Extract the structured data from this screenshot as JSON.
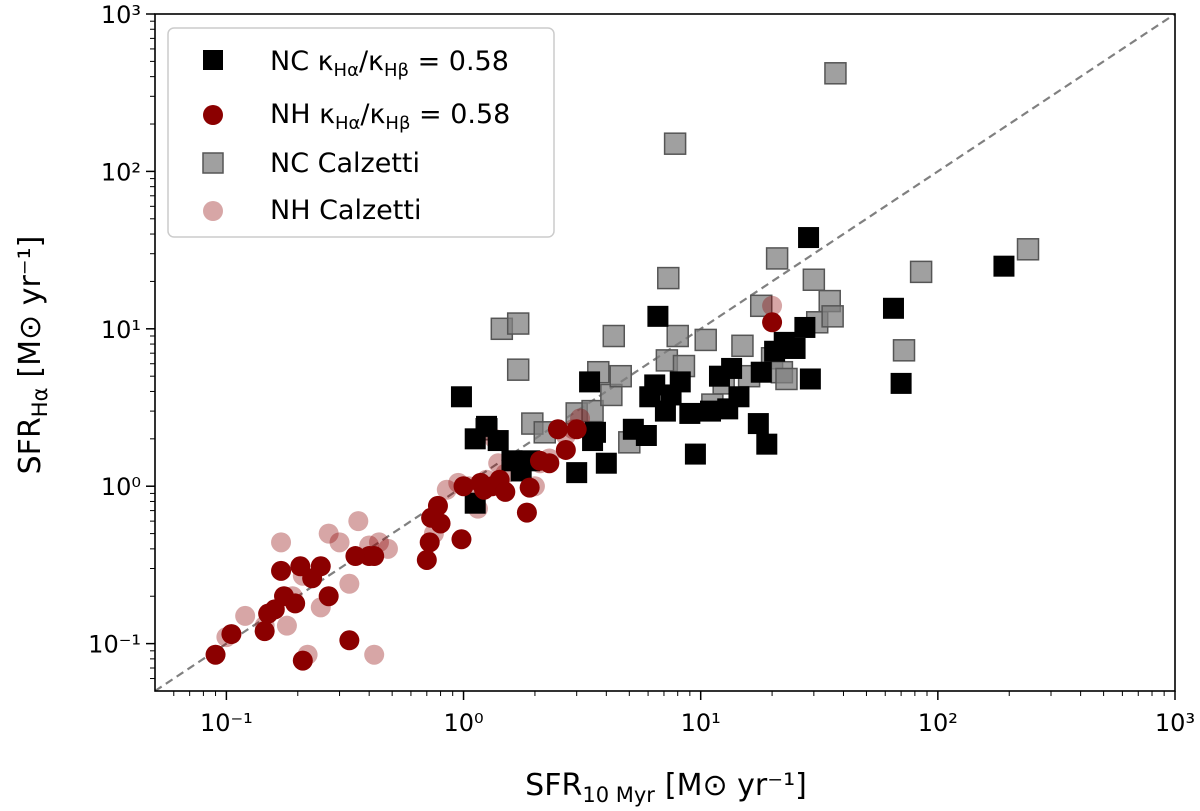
{
  "chart_data": {
    "type": "scatter",
    "xscale": "log",
    "yscale": "log",
    "xlim": [
      0.05,
      1000
    ],
    "ylim": [
      0.05,
      1000
    ],
    "xlabel": {
      "base": "SFR",
      "sub": "10 Myr",
      "units": "[M⊙ yr⁻¹]"
    },
    "ylabel": {
      "base": "SFR",
      "sub": "Hα",
      "units": "[M⊙ yr⁻¹]"
    },
    "x_ticks": [
      {
        "value": 0.1,
        "label": "10⁻¹"
      },
      {
        "value": 1,
        "label": "10⁰"
      },
      {
        "value": 10,
        "label": "10¹"
      },
      {
        "value": 100,
        "label": "10²"
      },
      {
        "value": 1000,
        "label": "10³"
      }
    ],
    "y_ticks": [
      {
        "value": 0.1,
        "label": "10⁻¹"
      },
      {
        "value": 1,
        "label": "10⁰"
      },
      {
        "value": 10,
        "label": "10¹"
      },
      {
        "value": 100,
        "label": "10²"
      },
      {
        "value": 1000,
        "label": "10³"
      }
    ],
    "reference_line": {
      "style": "dashed",
      "color": "#808080",
      "relation": "y = x"
    },
    "legend": {
      "placement": "upper-left"
    },
    "series": [
      {
        "name": "NC κHα/κHβ = 0.58",
        "label_display": "NC κ_Hα/κ_Hβ = 0.58",
        "marker": "square",
        "color": "#000000",
        "opacity": 1,
        "points": [
          [
            0.98,
            3.7
          ],
          [
            1.12,
            2.0
          ],
          [
            1.12,
            0.78
          ],
          [
            1.25,
            2.4
          ],
          [
            1.4,
            1.95
          ],
          [
            1.6,
            1.45
          ],
          [
            1.75,
            1.25
          ],
          [
            1.9,
            1.45
          ],
          [
            3.0,
            1.22
          ],
          [
            3.4,
            4.6
          ],
          [
            3.5,
            1.95
          ],
          [
            3.6,
            2.2
          ],
          [
            4.0,
            1.4
          ],
          [
            5.2,
            2.3
          ],
          [
            5.9,
            2.1
          ],
          [
            6.1,
            3.7
          ],
          [
            6.4,
            4.4
          ],
          [
            6.6,
            12.0
          ],
          [
            7.1,
            3.0
          ],
          [
            7.5,
            3.8
          ],
          [
            8.2,
            4.6
          ],
          [
            9.0,
            2.9
          ],
          [
            9.5,
            1.6
          ],
          [
            11.0,
            3.0
          ],
          [
            12.0,
            5.0
          ],
          [
            13.0,
            3.1
          ],
          [
            13.5,
            5.6
          ],
          [
            14.5,
            3.7
          ],
          [
            17.5,
            2.5
          ],
          [
            18.0,
            5.3
          ],
          [
            19.0,
            1.85
          ],
          [
            20.5,
            7.2
          ],
          [
            22.5,
            8.2
          ],
          [
            25.0,
            7.5
          ],
          [
            27.5,
            10.2
          ],
          [
            28.5,
            38.0
          ],
          [
            29.0,
            4.8
          ],
          [
            65.0,
            13.5
          ],
          [
            70.0,
            4.5
          ],
          [
            190.0,
            25.0
          ]
        ]
      },
      {
        "name": "NH κHα/κHβ = 0.58",
        "label_display": "NH κ_Hα/κ_Hβ = 0.58",
        "marker": "circle",
        "color": "#8b0000",
        "opacity": 1,
        "points": [
          [
            0.09,
            0.085
          ],
          [
            0.105,
            0.115
          ],
          [
            0.145,
            0.12
          ],
          [
            0.15,
            0.155
          ],
          [
            0.16,
            0.165
          ],
          [
            0.17,
            0.29
          ],
          [
            0.175,
            0.2
          ],
          [
            0.195,
            0.18
          ],
          [
            0.205,
            0.31
          ],
          [
            0.21,
            0.078
          ],
          [
            0.23,
            0.26
          ],
          [
            0.25,
            0.31
          ],
          [
            0.27,
            0.2
          ],
          [
            0.33,
            0.105
          ],
          [
            0.35,
            0.36
          ],
          [
            0.4,
            0.36
          ],
          [
            0.42,
            0.36
          ],
          [
            0.7,
            0.34
          ],
          [
            0.72,
            0.44
          ],
          [
            0.73,
            0.63
          ],
          [
            0.78,
            0.75
          ],
          [
            0.8,
            0.58
          ],
          [
            0.98,
            0.46
          ],
          [
            1.0,
            1.0
          ],
          [
            1.18,
            1.05
          ],
          [
            1.22,
            0.95
          ],
          [
            1.32,
            1.0
          ],
          [
            1.42,
            1.1
          ],
          [
            1.5,
            0.92
          ],
          [
            1.85,
            0.68
          ],
          [
            1.9,
            0.98
          ],
          [
            2.1,
            1.45
          ],
          [
            2.3,
            1.4
          ],
          [
            2.5,
            2.3
          ],
          [
            2.7,
            1.7
          ],
          [
            3.0,
            2.3
          ],
          [
            20.0,
            11.0
          ]
        ]
      },
      {
        "name": "NC Calzetti",
        "marker": "square",
        "color": "#808080",
        "opacity": 0.75,
        "points": [
          [
            1.25,
            2.3
          ],
          [
            1.45,
            10.0
          ],
          [
            1.7,
            10.8
          ],
          [
            1.7,
            5.5
          ],
          [
            1.95,
            2.5
          ],
          [
            2.2,
            2.2
          ],
          [
            3.0,
            2.9
          ],
          [
            3.5,
            3.0
          ],
          [
            3.7,
            5.3
          ],
          [
            4.2,
            3.8
          ],
          [
            4.3,
            9.0
          ],
          [
            4.6,
            5.0
          ],
          [
            5.0,
            1.9
          ],
          [
            7.3,
            21.0
          ],
          [
            7.2,
            6.3
          ],
          [
            7.8,
            150.0
          ],
          [
            8.0,
            9.0
          ],
          [
            8.5,
            5.8
          ],
          [
            10.5,
            8.5
          ],
          [
            11.2,
            3.3
          ],
          [
            12.5,
            4.5
          ],
          [
            15.0,
            7.8
          ],
          [
            16.0,
            5.0
          ],
          [
            18.0,
            14.0
          ],
          [
            20.0,
            6.5
          ],
          [
            21.0,
            28.0
          ],
          [
            22.0,
            5.3
          ],
          [
            23.0,
            4.8
          ],
          [
            30.0,
            20.5
          ],
          [
            31.0,
            11.0
          ],
          [
            35.0,
            15.0
          ],
          [
            36.0,
            12.0
          ],
          [
            37.0,
            420.0
          ],
          [
            72.0,
            7.3
          ],
          [
            85.0,
            23.0
          ],
          [
            240.0,
            32.0
          ]
        ]
      },
      {
        "name": "NH Calzetti",
        "marker": "circle",
        "color": "#8b0000",
        "opacity": 0.35,
        "points": [
          [
            0.1,
            0.11
          ],
          [
            0.12,
            0.15
          ],
          [
            0.145,
            0.13
          ],
          [
            0.17,
            0.44
          ],
          [
            0.18,
            0.13
          ],
          [
            0.19,
            0.2
          ],
          [
            0.21,
            0.27
          ],
          [
            0.22,
            0.085
          ],
          [
            0.25,
            0.17
          ],
          [
            0.27,
            0.5
          ],
          [
            0.3,
            0.44
          ],
          [
            0.33,
            0.24
          ],
          [
            0.36,
            0.6
          ],
          [
            0.4,
            0.42
          ],
          [
            0.42,
            0.085
          ],
          [
            0.44,
            0.44
          ],
          [
            0.48,
            0.4
          ],
          [
            0.75,
            0.5
          ],
          [
            0.85,
            0.95
          ],
          [
            0.95,
            1.05
          ],
          [
            1.05,
            1.0
          ],
          [
            1.15,
            0.72
          ],
          [
            1.25,
            1.1
          ],
          [
            1.35,
            2.0
          ],
          [
            1.4,
            1.4
          ],
          [
            1.5,
            1.2
          ],
          [
            1.75,
            1.3
          ],
          [
            2.0,
            1.0
          ],
          [
            2.1,
            1.4
          ],
          [
            2.3,
            1.5
          ],
          [
            2.7,
            2.1
          ],
          [
            2.9,
            2.3
          ],
          [
            3.1,
            2.7
          ],
          [
            20.0,
            14.0
          ]
        ]
      }
    ]
  }
}
